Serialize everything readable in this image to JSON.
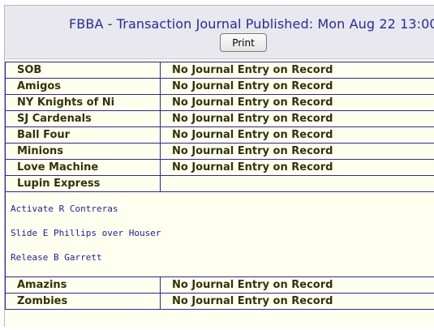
{
  "header": {
    "title": "FBBA  -  Transaction Journal Published: Mon Aug 22 13:00",
    "print_label": "Print"
  },
  "teams_top": [
    {
      "team": "SOB",
      "entry": "No Journal Entry on Record"
    },
    {
      "team": "Amigos",
      "entry": "No Journal Entry on Record"
    },
    {
      "team": "NY Knights of Ni",
      "entry": "No Journal Entry on Record"
    },
    {
      "team": "SJ Cardenals",
      "entry": "No Journal Entry on Record"
    },
    {
      "team": "Ball Four",
      "entry": "No Journal Entry on Record"
    },
    {
      "team": "Minions",
      "entry": "No Journal Entry on Record"
    },
    {
      "team": "Love Machine",
      "entry": "No Journal Entry on Record"
    },
    {
      "team": "Lupin Express",
      "entry": ""
    }
  ],
  "lupin_transactions": [
    "Activate R Contreras",
    "Slide E Phillips over Houser",
    "Release B Garrett"
  ],
  "teams_bottom": [
    {
      "team": "Amazins",
      "entry": "No Journal Entry on Record"
    },
    {
      "team": "Zombies",
      "entry": "No Journal Entry on Record"
    }
  ]
}
